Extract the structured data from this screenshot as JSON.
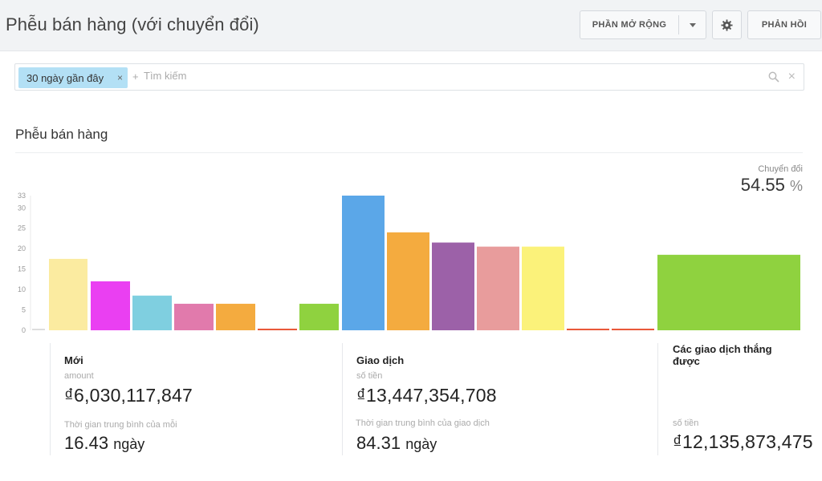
{
  "header": {
    "title": "Phễu bán hàng (với chuyển đổi)",
    "extensions_label": "PHẦN MỞ RỘNG",
    "feedback_label": "PHẢN HỒI"
  },
  "search": {
    "tag_label": "30 ngày gần đây",
    "plus": "+",
    "placeholder": "Tìm kiếm"
  },
  "funnel": {
    "title": "Phễu bán hàng",
    "conversion_label": "Chuyển đổi",
    "conversion_value": "54.55",
    "conversion_unit": "%"
  },
  "chart_data": {
    "type": "bar",
    "ylim": [
      0,
      33
    ],
    "yticks": [
      0,
      5,
      10,
      15,
      20,
      25,
      30,
      33
    ],
    "grid": false,
    "bars": [
      {
        "value": 0,
        "color": "#dddddd"
      },
      {
        "value": 17.5,
        "color": "#fbeba0"
      },
      {
        "value": 12,
        "color": "#ea3ff2"
      },
      {
        "value": 8.5,
        "color": "#7fcfe0"
      },
      {
        "value": 6.5,
        "color": "#e17aac"
      },
      {
        "value": 6.5,
        "color": "#f4ab3f"
      },
      {
        "value": 0.4,
        "color": "#e9593a"
      },
      {
        "value": 6.5,
        "color": "#8fd23f"
      },
      {
        "value": 33,
        "color": "#5ba7e8"
      },
      {
        "value": 24,
        "color": "#f4ab3f"
      },
      {
        "value": 21.5,
        "color": "#9c61a8"
      },
      {
        "value": 20.5,
        "color": "#e89c9c"
      },
      {
        "value": 20.5,
        "color": "#fbf27a"
      },
      {
        "value": 0.4,
        "color": "#e9593a"
      },
      {
        "value": 0.4,
        "color": "#e9593a"
      },
      {
        "value": 18.5,
        "color": "#8fd23f"
      }
    ]
  },
  "stats": {
    "moi": {
      "title": "Mới",
      "sub": "amount",
      "amount": "₫6,030,117,847",
      "avg_label": "Thời gian trung bình của mỗi",
      "avg_value": "16.43",
      "avg_unit": "ngày"
    },
    "giao_dich": {
      "title": "Giao dịch",
      "sub": "số tiền",
      "amount": "₫13,447,354,708",
      "avg_label": "Thời gian trung bình của giao dịch",
      "avg_value": "84.31",
      "avg_unit": "ngày"
    },
    "thang": {
      "title": "Các giao dịch thắng được",
      "sub": "số tiền",
      "amount": "₫12,135,873,475"
    }
  }
}
